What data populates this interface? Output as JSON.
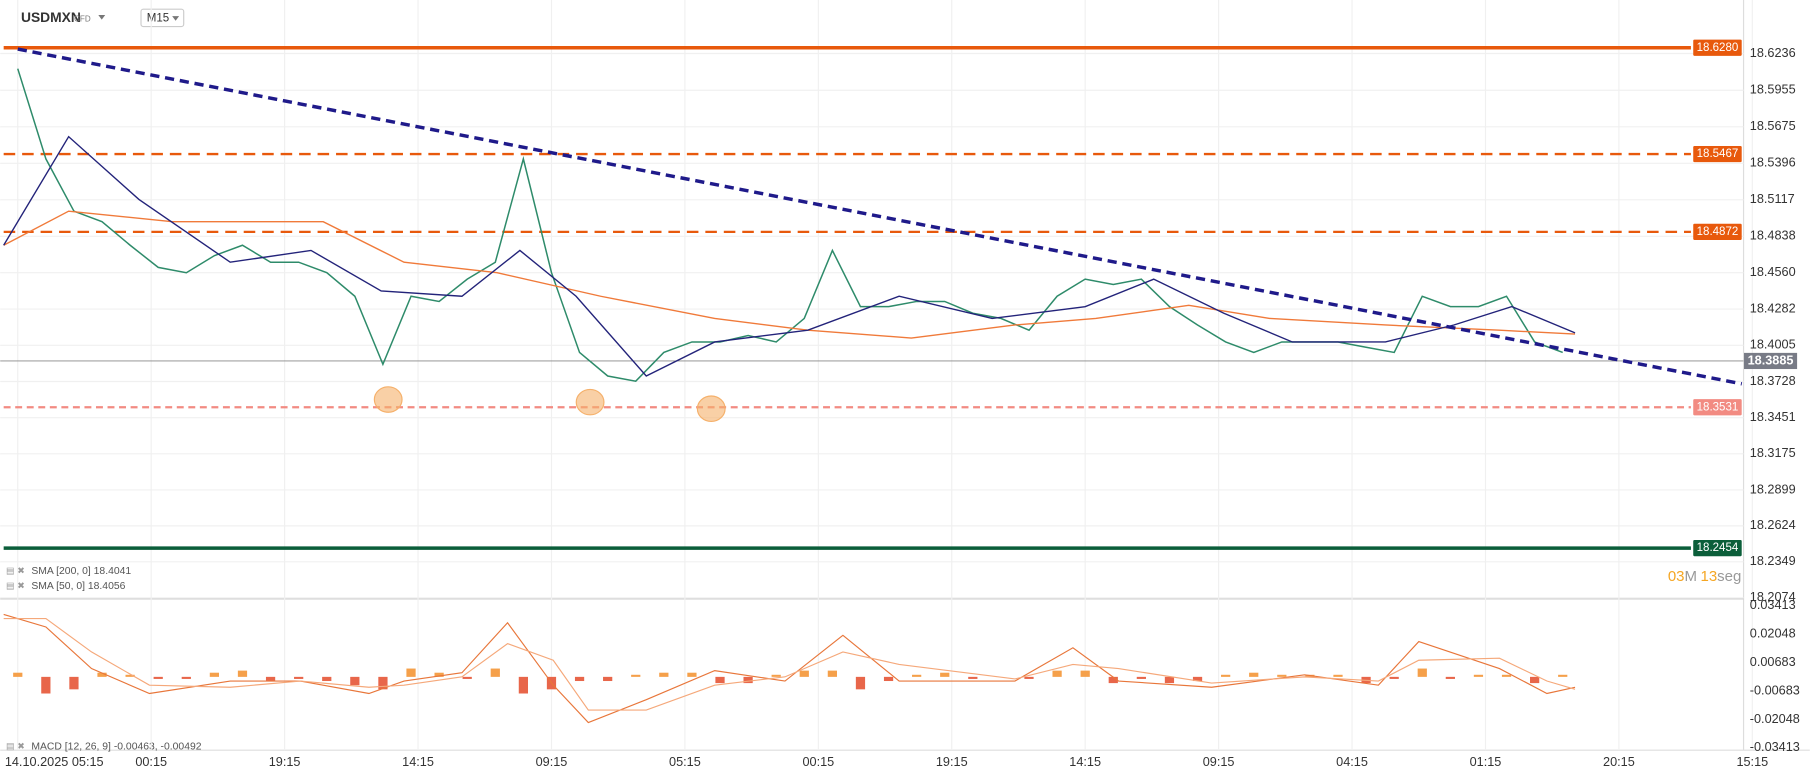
{
  "chart_data": {
    "type": "line",
    "title": "USDMXN",
    "subtitle": "CFD",
    "timeframe": "M15",
    "xlim": [
      -10,
      983
    ],
    "xticks": [
      {
        "value": 0,
        "label": "14.10.2025 05:15"
      },
      {
        "value": 76,
        "label": "00:15"
      },
      {
        "value": 152,
        "label": "19:15"
      },
      {
        "value": 228,
        "label": "14:15"
      },
      {
        "value": 304,
        "label": "09:15"
      },
      {
        "value": 380,
        "label": "05:15"
      },
      {
        "value": 456,
        "label": "00:15"
      },
      {
        "value": 532,
        "label": "19:15"
      },
      {
        "value": 608,
        "label": "14:15"
      },
      {
        "value": 684,
        "label": "09:15"
      },
      {
        "value": 760,
        "label": "04:15"
      },
      {
        "value": 836,
        "label": "01:15"
      },
      {
        "value": 912,
        "label": "20:15"
      },
      {
        "value": 988,
        "label": "15:15"
      }
    ],
    "ylim": [
      18.2074,
      18.6645
    ],
    "yticks": [
      18.6236,
      18.5955,
      18.5675,
      18.5396,
      18.5117,
      18.4838,
      {
        "value": 18.456,
        "label": "18.4560"
      },
      18.4282,
      18.4005,
      18.3728,
      18.3451,
      18.3175,
      18.2899,
      18.2624,
      18.2349,
      18.2074
    ],
    "grid": true,
    "price": {
      "color": "#2e8b6a",
      "x": [
        0,
        16,
        32,
        48,
        64,
        80,
        96,
        112,
        128,
        144,
        160,
        176,
        192,
        208,
        224,
        240,
        256,
        272,
        288,
        304,
        320,
        336,
        352,
        368,
        384,
        400,
        416,
        432,
        448,
        464,
        480,
        496,
        512,
        528,
        544,
        560,
        576,
        592,
        608,
        624,
        640,
        656,
        672,
        688,
        704,
        720,
        736,
        752,
        768,
        784,
        800,
        816,
        832,
        848,
        864,
        880
      ],
      "values": [
        18.612,
        18.543,
        18.503,
        18.495,
        18.477,
        18.46,
        18.456,
        18.469,
        18.477,
        18.464,
        18.464,
        18.456,
        18.438,
        18.386,
        18.438,
        18.434,
        18.451,
        18.464,
        18.543,
        18.456,
        18.395,
        18.377,
        18.373,
        18.395,
        18.403,
        18.403,
        18.408,
        18.403,
        18.421,
        18.473,
        18.43,
        18.43,
        18.434,
        18.434,
        18.425,
        18.421,
        18.412,
        18.438,
        18.451,
        18.447,
        18.451,
        18.43,
        18.416,
        18.403,
        18.395,
        18.403,
        18.403,
        18.403,
        18.399,
        18.395,
        18.438,
        18.43,
        18.43,
        18.438,
        18.403,
        18.395
      ]
    },
    "last": {
      "value": 18.3885,
      "color": "#787b86"
    },
    "series": [
      {
        "name": "SMA [200, 0] 18.4041",
        "color": "#f07a3a",
        "x": [
          -8,
          29,
          88,
          174,
          220,
          273,
          332,
          397,
          450,
          509,
          568,
          614,
          667,
          713,
          779,
          844,
          887
        ],
        "values": [
          18.477,
          18.503,
          18.495,
          18.495,
          18.464,
          18.456,
          18.438,
          18.421,
          18.412,
          18.406,
          18.416,
          18.421,
          18.431,
          18.421,
          18.416,
          18.412,
          18.409
        ]
      },
      {
        "name": "SMA [50, 0] 18.4056",
        "color": "#23237a",
        "x": [
          -8,
          29,
          69,
          121,
          167,
          207,
          253,
          286,
          318,
          358,
          397,
          450,
          502,
          555,
          608,
          647,
          687,
          726,
          779,
          818,
          851,
          887
        ],
        "values": [
          18.477,
          18.56,
          18.512,
          18.464,
          18.473,
          18.442,
          18.438,
          18.473,
          18.438,
          18.377,
          18.403,
          18.412,
          18.438,
          18.421,
          18.43,
          18.451,
          18.425,
          18.403,
          18.403,
          18.416,
          18.43,
          18.41
        ]
      }
    ],
    "levels": [
      {
        "value": 18.628,
        "label": "18.6280",
        "color": "#e8590c",
        "style": "solid"
      },
      {
        "value": 18.5467,
        "color": "#e8590c",
        "style": "dashed"
      },
      {
        "value": 18.4872,
        "color": "#e8590c",
        "style": "dashed"
      },
      {
        "value": 18.3531,
        "color": "#f28b82",
        "style": "dotted"
      },
      {
        "value": 18.2454,
        "color": "#0b5e3a",
        "style": "solid"
      }
    ],
    "trendline": {
      "color": "#1f1a8a",
      "x": [
        0,
        982
      ],
      "values": [
        18.627,
        18.371
      ]
    },
    "lows": {
      "color": "#f5b06a",
      "x": [
        211,
        326,
        395
      ],
      "values": [
        18.359,
        18.357,
        18.352
      ]
    },
    "countdown": [
      "03",
      "M",
      "13",
      "seg"
    ],
    "macd": {
      "legend": "MACD [12, 26, 9] -0.00463, -0.00492",
      "ylim": [
        -0.03413,
        0.03413
      ],
      "yticks": [
        0.03413,
        0.02048,
        0.00683,
        -0.00683,
        -0.02048,
        -0.03413
      ],
      "histogram": {
        "up_color": "#f5a04a",
        "down_color": "#e8664a",
        "x": [
          0,
          16,
          32,
          48,
          64,
          80,
          96,
          112,
          128,
          144,
          160,
          176,
          192,
          208,
          224,
          240,
          256,
          272,
          288,
          304,
          320,
          336,
          352,
          368,
          384,
          400,
          416,
          432,
          448,
          464,
          480,
          496,
          512,
          528,
          544,
          560,
          576,
          592,
          608,
          624,
          640,
          656,
          672,
          688,
          704,
          720,
          736,
          752,
          768,
          784,
          800,
          816,
          832,
          848,
          864,
          880
        ],
        "values": [
          0.002,
          -0.008,
          -0.006,
          0.002,
          0.001,
          -0.001,
          -0.001,
          0.002,
          0.003,
          -0.002,
          -0.001,
          -0.002,
          -0.004,
          -0.006,
          0.004,
          0.002,
          -0.001,
          0.004,
          -0.008,
          -0.006,
          -0.002,
          -0.002,
          0.001,
          0.002,
          0.002,
          -0.003,
          -0.003,
          0.001,
          0.003,
          0.003,
          -0.006,
          -0.002,
          0.001,
          0.002,
          -0.001,
          0,
          -0.001,
          0.003,
          0.003,
          -0.003,
          -0.001,
          -0.003,
          -0.002,
          0.001,
          0.002,
          0.001,
          0.001,
          0.001,
          -0.003,
          -0.001,
          0.004,
          -0.001,
          0.001,
          0.001,
          -0.003,
          0.001
        ]
      },
      "series": [
        {
          "color": "#e8763a",
          "x": [
            -8,
            16,
            42,
            75,
            121,
            161,
            200,
            220,
            253,
            279,
            305,
            325,
            358,
            397,
            437,
            470,
            502,
            568,
            601,
            627,
            680,
            733,
            775,
            798,
            844,
            871,
            887
          ],
          "values": [
            0.03,
            0.024,
            0.004,
            -0.008,
            -0.002,
            -0.002,
            -0.008,
            -0.002,
            0.002,
            0.026,
            -0.004,
            -0.022,
            -0.011,
            0.003,
            -0.002,
            0.02,
            -0.002,
            -0.002,
            0.014,
            -0.002,
            -0.005,
            0.001,
            -0.004,
            0.017,
            0.004,
            -0.008,
            -0.005
          ]
        },
        {
          "color": "#f5a87a",
          "x": [
            -8,
            16,
            42,
            75,
            121,
            161,
            200,
            220,
            253,
            279,
            305,
            325,
            358,
            397,
            437,
            470,
            502,
            568,
            601,
            627,
            680,
            733,
            775,
            798,
            844,
            871,
            887
          ],
          "values": [
            0.028,
            0.028,
            0.012,
            -0.004,
            -0.005,
            -0.002,
            -0.005,
            -0.004,
            0,
            0.016,
            0.008,
            -0.016,
            -0.016,
            -0.004,
            0,
            0.012,
            0.006,
            -0.001,
            0.006,
            0.004,
            -0.003,
            0,
            -0.002,
            0.008,
            0.009,
            -0.002,
            -0.006
          ]
        }
      ]
    }
  }
}
